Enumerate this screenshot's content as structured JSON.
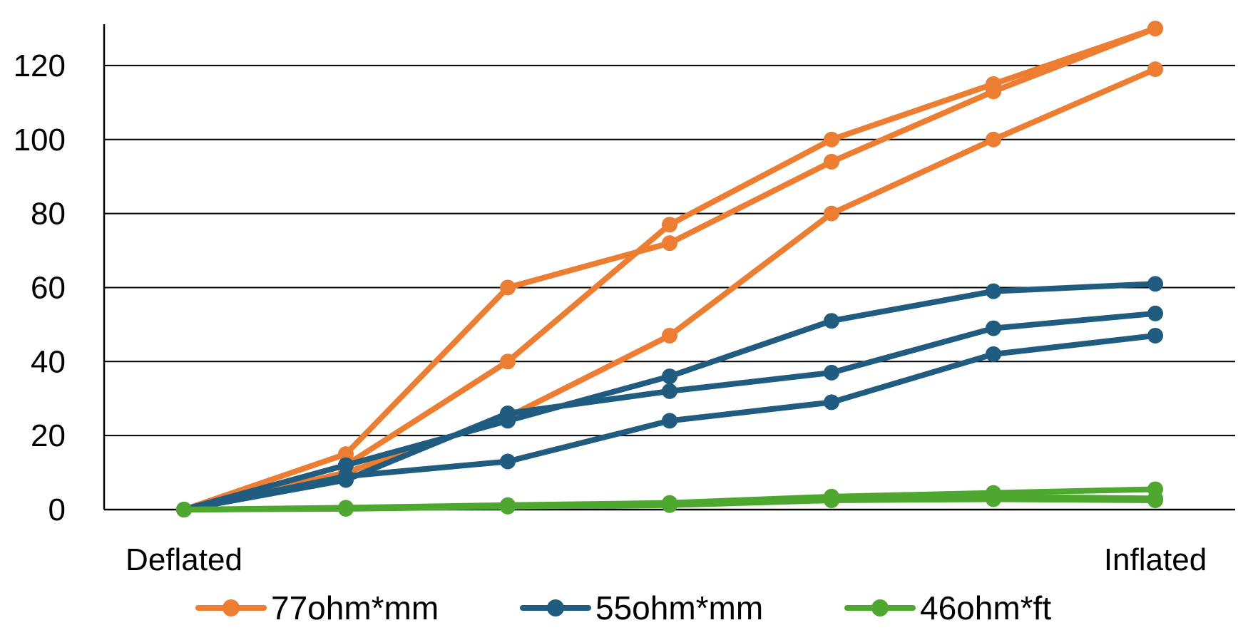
{
  "chart_data": {
    "type": "line",
    "title": "",
    "xlabel": "",
    "ylabel": "",
    "x_positions": 7,
    "x_tick_labels": [
      {
        "index": 0,
        "label": "Deflated"
      },
      {
        "index": 6,
        "label": "Inflated"
      }
    ],
    "ylim": [
      0,
      130
    ],
    "yticks": [
      0,
      20,
      40,
      60,
      80,
      100,
      120
    ],
    "grid": true,
    "legend_position": "bottom",
    "series": [
      {
        "name": "77ohm*mm",
        "color": "#ED7D31",
        "lines": [
          [
            0,
            15,
            60,
            72,
            94,
            113,
            130
          ],
          [
            0,
            12,
            40,
            77,
            100,
            115,
            130
          ],
          [
            0,
            10,
            25,
            47,
            80,
            100,
            119
          ]
        ]
      },
      {
        "name": "55ohm*mm",
        "color": "#1F5C80",
        "lines": [
          [
            0,
            12,
            24,
            36,
            51,
            59,
            61
          ],
          [
            0,
            8,
            26,
            32,
            37,
            49,
            53
          ],
          [
            0,
            9,
            13,
            24,
            29,
            42,
            47
          ]
        ]
      },
      {
        "name": "46ohm*ft",
        "color": "#4EA72E",
        "lines": [
          [
            0,
            0.5,
            1.2,
            1.8,
            3.5,
            4.5,
            5.5
          ],
          [
            0,
            0.3,
            1.0,
            1.5,
            3.0,
            3.5,
            3.0
          ],
          [
            0,
            0.2,
            0.8,
            1.2,
            2.5,
            2.8,
            2.5
          ]
        ]
      }
    ]
  }
}
